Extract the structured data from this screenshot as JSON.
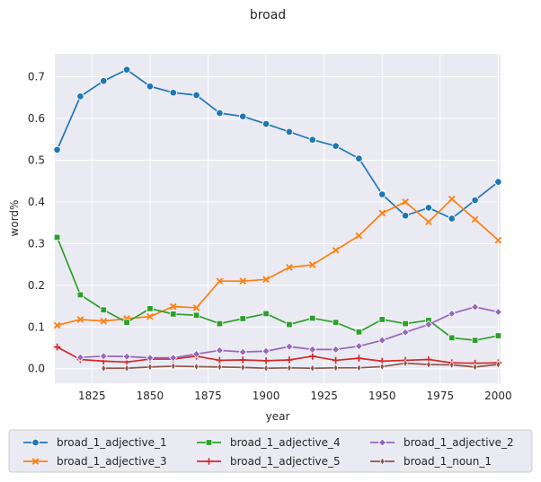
{
  "chart_data": {
    "type": "line",
    "title": "broad",
    "xlabel": "year",
    "ylabel": "word%",
    "xlim": [
      1809,
      2001
    ],
    "ylim": [
      -0.035,
      0.755
    ],
    "xticks": [
      1825,
      1850,
      1875,
      1900,
      1925,
      1950,
      1975,
      2000
    ],
    "yticks": [
      0.0,
      0.1,
      0.2,
      0.3,
      0.4,
      0.5,
      0.6,
      0.7
    ],
    "ytick_labels": [
      "0.0",
      "0.1",
      "0.2",
      "0.3",
      "0.4",
      "0.5",
      "0.6",
      "0.7"
    ],
    "grid": true,
    "legend_position": "bottom",
    "series": [
      {
        "name": "broad_1_adjective_1",
        "color": "#1f77b4",
        "marker": "circle",
        "x": [
          1810,
          1820,
          1830,
          1840,
          1850,
          1860,
          1870,
          1880,
          1890,
          1900,
          1910,
          1920,
          1930,
          1940,
          1950,
          1960,
          1970,
          1980,
          1990,
          2000
        ],
        "y": [
          0.525,
          0.653,
          0.69,
          0.717,
          0.677,
          0.662,
          0.656,
          0.613,
          0.605,
          0.587,
          0.568,
          0.549,
          0.534,
          0.504,
          0.418,
          0.367,
          0.386,
          0.36,
          0.404,
          0.448
        ]
      },
      {
        "name": "broad_1_adjective_3",
        "color": "#ff7f0e",
        "marker": "x",
        "x": [
          1810,
          1820,
          1830,
          1840,
          1850,
          1860,
          1870,
          1880,
          1890,
          1900,
          1910,
          1920,
          1930,
          1940,
          1950,
          1960,
          1970,
          1980,
          1990,
          2000
        ],
        "y": [
          0.104,
          0.118,
          0.114,
          0.12,
          0.125,
          0.149,
          0.146,
          0.21,
          0.21,
          0.214,
          0.243,
          0.249,
          0.284,
          0.319,
          0.373,
          0.4,
          0.352,
          0.407,
          0.358,
          0.308
        ]
      },
      {
        "name": "broad_1_adjective_4",
        "color": "#2ca02c",
        "marker": "square",
        "x": [
          1810,
          1820,
          1830,
          1840,
          1850,
          1860,
          1870,
          1880,
          1890,
          1900,
          1910,
          1920,
          1930,
          1940,
          1950,
          1960,
          1970,
          1980,
          1990,
          2000
        ],
        "y": [
          0.315,
          0.177,
          0.141,
          0.111,
          0.144,
          0.131,
          0.128,
          0.108,
          0.12,
          0.132,
          0.106,
          0.121,
          0.111,
          0.088,
          0.118,
          0.108,
          0.116,
          0.074,
          0.068,
          0.079
        ]
      },
      {
        "name": "broad_1_adjective_5",
        "color": "#d62728",
        "marker": "plus",
        "x": [
          1810,
          1820,
          1830,
          1840,
          1850,
          1860,
          1870,
          1880,
          1890,
          1900,
          1910,
          1920,
          1930,
          1940,
          1950,
          1960,
          1970,
          1980,
          1990,
          2000
        ],
        "y": [
          0.052,
          0.022,
          0.018,
          0.016,
          0.023,
          0.023,
          0.03,
          0.02,
          0.021,
          0.019,
          0.021,
          0.03,
          0.02,
          0.025,
          0.018,
          0.02,
          0.022,
          0.014,
          0.013,
          0.014
        ]
      },
      {
        "name": "broad_1_adjective_2",
        "color": "#9467bd",
        "marker": "diamond",
        "x": [
          1820,
          1830,
          1840,
          1850,
          1860,
          1870,
          1880,
          1890,
          1900,
          1910,
          1920,
          1930,
          1940,
          1950,
          1960,
          1970,
          1980,
          1990,
          2000
        ],
        "y": [
          0.027,
          0.03,
          0.029,
          0.026,
          0.026,
          0.035,
          0.044,
          0.04,
          0.042,
          0.053,
          0.046,
          0.046,
          0.054,
          0.068,
          0.087,
          0.106,
          0.132,
          0.148,
          0.136
        ]
      },
      {
        "name": "broad_1_noun_1",
        "color": "#8c564b",
        "marker": "thin-diamond",
        "x": [
          1830,
          1840,
          1850,
          1860,
          1870,
          1880,
          1890,
          1900,
          1910,
          1920,
          1930,
          1940,
          1950,
          1960,
          1970,
          1980,
          1990,
          2000
        ],
        "y": [
          0.001,
          0.001,
          0.004,
          0.006,
          0.005,
          0.004,
          0.003,
          0.001,
          0.002,
          0.001,
          0.002,
          0.002,
          0.005,
          0.013,
          0.01,
          0.009,
          0.004,
          0.01
        ]
      }
    ]
  }
}
